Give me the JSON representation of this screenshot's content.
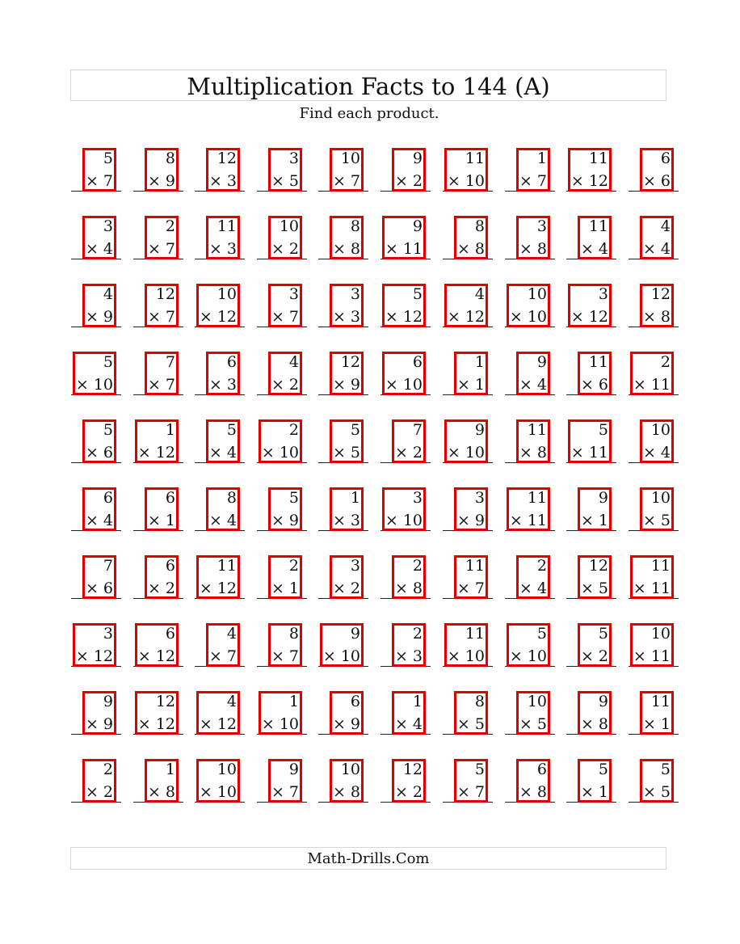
{
  "header": {
    "title": "Multiplication Facts to 144 (A)",
    "instructions": "Find each product."
  },
  "footer": {
    "text": "Math-Drills.Com"
  },
  "highlight_color": "#e00000",
  "problems": [
    [
      {
        "a": "5",
        "b": "× 7"
      },
      {
        "a": "8",
        "b": "× 9"
      },
      {
        "a": "12",
        "b": "× 3"
      },
      {
        "a": "3",
        "b": "× 5"
      },
      {
        "a": "10",
        "b": "× 7"
      },
      {
        "a": "9",
        "b": "× 2"
      },
      {
        "a": "11",
        "b": "× 10"
      },
      {
        "a": "1",
        "b": "× 7"
      },
      {
        "a": "11",
        "b": "× 12"
      },
      {
        "a": "6",
        "b": "× 6"
      }
    ],
    [
      {
        "a": "3",
        "b": "× 4"
      },
      {
        "a": "2",
        "b": "× 7"
      },
      {
        "a": "11",
        "b": "× 3"
      },
      {
        "a": "10",
        "b": "× 2"
      },
      {
        "a": "8",
        "b": "× 8"
      },
      {
        "a": "9",
        "b": "× 11"
      },
      {
        "a": "8",
        "b": "× 8"
      },
      {
        "a": "3",
        "b": "× 8"
      },
      {
        "a": "11",
        "b": "× 4"
      },
      {
        "a": "4",
        "b": "× 4"
      }
    ],
    [
      {
        "a": "4",
        "b": "× 9"
      },
      {
        "a": "12",
        "b": "× 7"
      },
      {
        "a": "10",
        "b": "× 12"
      },
      {
        "a": "3",
        "b": "× 7"
      },
      {
        "a": "3",
        "b": "× 3"
      },
      {
        "a": "5",
        "b": "× 12"
      },
      {
        "a": "4",
        "b": "× 12"
      },
      {
        "a": "10",
        "b": "× 10"
      },
      {
        "a": "3",
        "b": "× 12"
      },
      {
        "a": "12",
        "b": "× 8"
      }
    ],
    [
      {
        "a": "5",
        "b": "× 10"
      },
      {
        "a": "7",
        "b": "× 7"
      },
      {
        "a": "6",
        "b": "× 3"
      },
      {
        "a": "4",
        "b": "× 2"
      },
      {
        "a": "12",
        "b": "× 9"
      },
      {
        "a": "6",
        "b": "× 10"
      },
      {
        "a": "1",
        "b": "× 1"
      },
      {
        "a": "9",
        "b": "× 4"
      },
      {
        "a": "11",
        "b": "× 6"
      },
      {
        "a": "2",
        "b": "× 11"
      }
    ],
    [
      {
        "a": "5",
        "b": "× 6"
      },
      {
        "a": "1",
        "b": "× 12"
      },
      {
        "a": "5",
        "b": "× 4"
      },
      {
        "a": "2",
        "b": "× 10"
      },
      {
        "a": "5",
        "b": "× 5"
      },
      {
        "a": "7",
        "b": "× 2"
      },
      {
        "a": "9",
        "b": "× 10"
      },
      {
        "a": "11",
        "b": "× 8"
      },
      {
        "a": "5",
        "b": "× 11"
      },
      {
        "a": "10",
        "b": "× 4"
      }
    ],
    [
      {
        "a": "6",
        "b": "× 4"
      },
      {
        "a": "6",
        "b": "× 1"
      },
      {
        "a": "8",
        "b": "× 4"
      },
      {
        "a": "5",
        "b": "× 9"
      },
      {
        "a": "1",
        "b": "× 3"
      },
      {
        "a": "3",
        "b": "× 10"
      },
      {
        "a": "3",
        "b": "× 9"
      },
      {
        "a": "11",
        "b": "× 11"
      },
      {
        "a": "9",
        "b": "× 1"
      },
      {
        "a": "10",
        "b": "× 5"
      }
    ],
    [
      {
        "a": "7",
        "b": "× 6"
      },
      {
        "a": "6",
        "b": "× 2"
      },
      {
        "a": "11",
        "b": "× 12"
      },
      {
        "a": "2",
        "b": "× 1"
      },
      {
        "a": "3",
        "b": "× 2"
      },
      {
        "a": "2",
        "b": "× 8"
      },
      {
        "a": "11",
        "b": "× 7"
      },
      {
        "a": "2",
        "b": "× 4"
      },
      {
        "a": "12",
        "b": "× 5"
      },
      {
        "a": "11",
        "b": "× 11"
      }
    ],
    [
      {
        "a": "3",
        "b": "× 12"
      },
      {
        "a": "6",
        "b": "× 12"
      },
      {
        "a": "4",
        "b": "× 7"
      },
      {
        "a": "8",
        "b": "× 7"
      },
      {
        "a": "9",
        "b": "× 10"
      },
      {
        "a": "2",
        "b": "× 3"
      },
      {
        "a": "11",
        "b": "× 10"
      },
      {
        "a": "5",
        "b": "× 10"
      },
      {
        "a": "5",
        "b": "× 2"
      },
      {
        "a": "10",
        "b": "× 11"
      }
    ],
    [
      {
        "a": "9",
        "b": "× 9"
      },
      {
        "a": "12",
        "b": "× 12"
      },
      {
        "a": "4",
        "b": "× 12"
      },
      {
        "a": "1",
        "b": "× 10"
      },
      {
        "a": "6",
        "b": "× 9"
      },
      {
        "a": "1",
        "b": "× 4"
      },
      {
        "a": "8",
        "b": "× 5"
      },
      {
        "a": "10",
        "b": "× 5"
      },
      {
        "a": "9",
        "b": "× 8"
      },
      {
        "a": "11",
        "b": "× 1"
      }
    ],
    [
      {
        "a": "2",
        "b": "× 2"
      },
      {
        "a": "1",
        "b": "× 8"
      },
      {
        "a": "10",
        "b": "× 10"
      },
      {
        "a": "9",
        "b": "× 7"
      },
      {
        "a": "10",
        "b": "× 8"
      },
      {
        "a": "12",
        "b": "× 2"
      },
      {
        "a": "5",
        "b": "× 7"
      },
      {
        "a": "6",
        "b": "× 8"
      },
      {
        "a": "5",
        "b": "× 1"
      },
      {
        "a": "5",
        "b": "× 5"
      }
    ]
  ]
}
